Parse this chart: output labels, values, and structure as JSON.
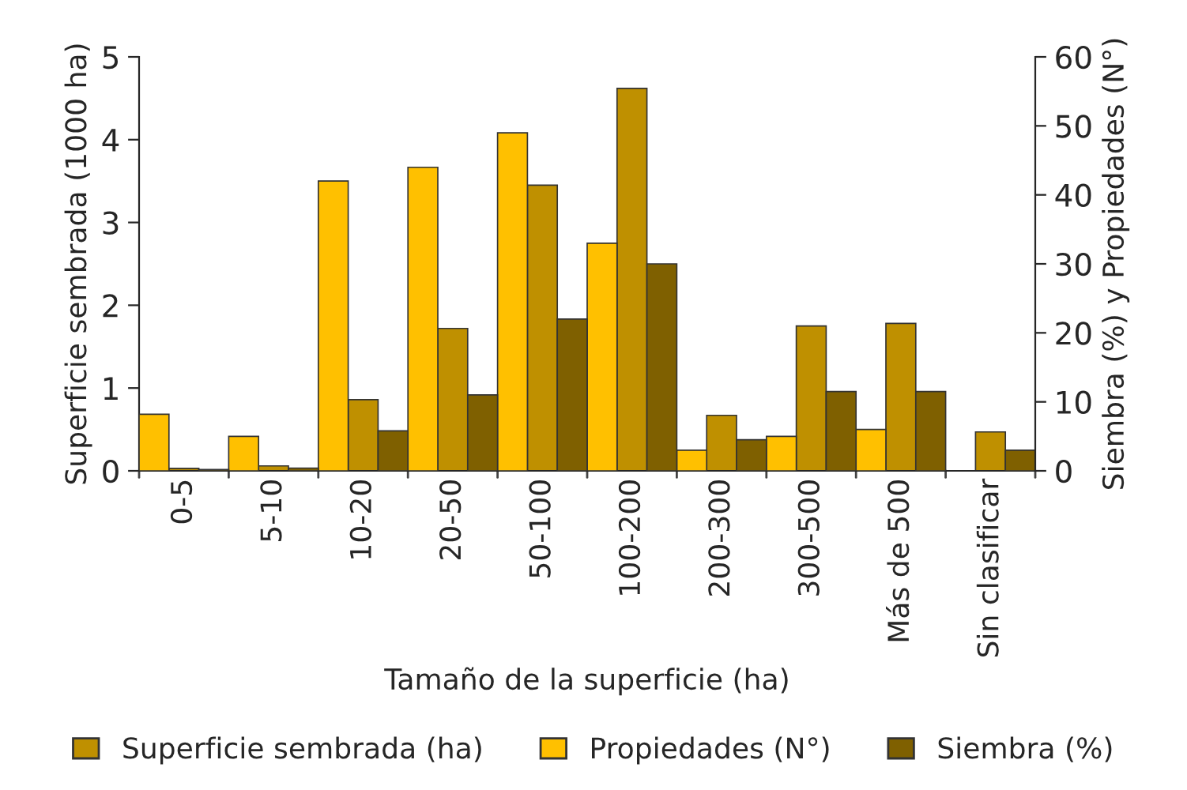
{
  "chart_data": {
    "type": "bar",
    "xlabel": "Tamaño de la superficie (ha)",
    "ylabel": "Superficie sembrada (1000 ha)",
    "y2label": "Siembra (%) y Propiedades (N°)",
    "categories": [
      "0-5",
      "5-10",
      "10-20",
      "20-50",
      "50-100",
      "100-200",
      "200-300",
      "300-500",
      "Más de 500",
      "Sin clasificar"
    ],
    "series": [
      {
        "name": "Propiedades (N°)",
        "color": "#ffc000",
        "axis": "y2",
        "values": [
          8.2,
          5,
          42,
          44,
          49,
          33,
          3,
          5,
          6,
          null
        ]
      },
      {
        "name": "Superficie sembrada (ha)",
        "color": "#bf9000",
        "values": [
          0.03,
          0.06,
          0.86,
          1.72,
          3.45,
          4.62,
          0.67,
          1.75,
          1.78,
          0.47
        ]
      },
      {
        "name": "Siembra (%)",
        "color": "#7f6000",
        "axis": "y2",
        "values": [
          0.2,
          0.4,
          5.8,
          11,
          22,
          30,
          4.5,
          11.5,
          11.5,
          3
        ]
      }
    ],
    "ylim": [
      0,
      5
    ],
    "yticks": [
      0,
      1,
      2,
      3,
      4,
      5
    ],
    "y2lim": [
      0,
      60
    ],
    "y2ticks": [
      0,
      10,
      20,
      30,
      40,
      50,
      60
    ],
    "legend": "bottom",
    "grid": false
  }
}
